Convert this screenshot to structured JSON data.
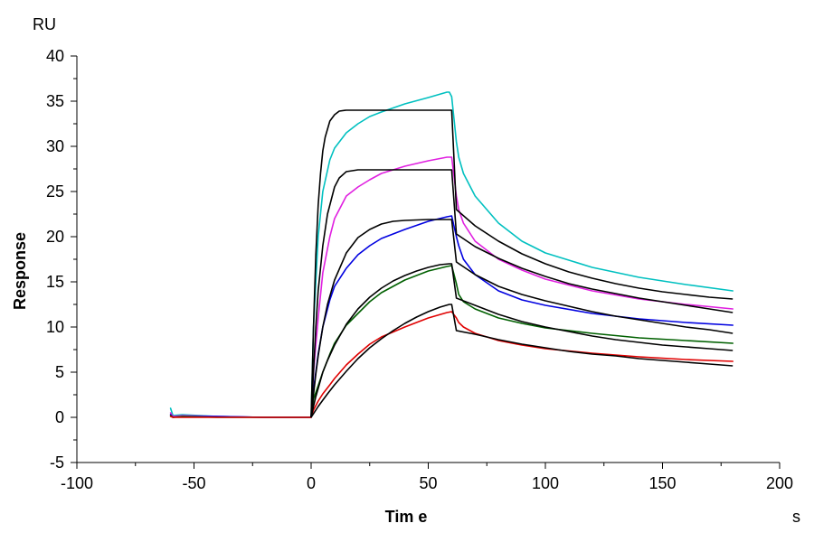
{
  "chart_data": {
    "type": "line",
    "xlabel": "Tim e",
    "ylabel": "Response",
    "x_unit": "s",
    "y_unit": "RU",
    "xlim": [
      -100,
      200
    ],
    "ylim": [
      -5,
      40
    ],
    "x_ticks": [
      -100,
      -50,
      0,
      50,
      100,
      150,
      200
    ],
    "y_ticks": [
      -5,
      0,
      5,
      10,
      15,
      20,
      25,
      30,
      35,
      40
    ],
    "grid": false,
    "legend": "none",
    "series": [
      {
        "color": "#00c0c0",
        "x": [
          -60,
          -59,
          -55,
          -40,
          -20,
          0,
          1,
          3,
          5,
          8,
          10,
          15,
          20,
          25,
          30,
          40,
          50,
          58,
          59,
          60,
          62,
          63,
          65,
          70,
          80,
          90,
          100,
          120,
          140,
          160,
          180
        ],
        "y": [
          1.0,
          0.2,
          0.3,
          0.1,
          0.0,
          0.0,
          10,
          20,
          25,
          28.5,
          29.8,
          31.5,
          32.5,
          33.3,
          33.8,
          34.7,
          35.4,
          36.0,
          36.0,
          35.5,
          30.5,
          28.8,
          27.0,
          24.5,
          21.5,
          19.5,
          18.2,
          16.6,
          15.5,
          14.7,
          14.0
        ]
      },
      {
        "color": "#e020e0",
        "x": [
          -60,
          -59,
          -55,
          -40,
          -20,
          0,
          1,
          3,
          5,
          8,
          10,
          15,
          20,
          25,
          30,
          40,
          50,
          58,
          60,
          62,
          63,
          65,
          70,
          80,
          90,
          100,
          120,
          140,
          160,
          180
        ],
        "y": [
          0.5,
          0.1,
          0.2,
          0.1,
          0.0,
          0.0,
          5,
          11,
          16,
          20,
          22,
          24.5,
          25.5,
          26.3,
          27.0,
          27.8,
          28.4,
          28.8,
          28.8,
          24.5,
          23.0,
          21.5,
          19.5,
          17.5,
          16.3,
          15.3,
          14.0,
          13.1,
          12.5,
          12.0
        ]
      },
      {
        "color": "#0000e0",
        "x": [
          -60,
          -59,
          -55,
          -40,
          -20,
          0,
          1,
          3,
          5,
          8,
          10,
          15,
          20,
          25,
          30,
          40,
          50,
          58,
          60,
          62,
          63,
          65,
          70,
          80,
          90,
          100,
          120,
          140,
          160,
          180
        ],
        "y": [
          0.3,
          0.0,
          0.1,
          0.1,
          0.0,
          0.0,
          3,
          7,
          10,
          13,
          14.5,
          16.5,
          18.0,
          19.0,
          19.8,
          20.8,
          21.7,
          22.2,
          22.3,
          20.0,
          19.0,
          17.5,
          15.8,
          14.0,
          13.0,
          12.4,
          11.5,
          10.9,
          10.5,
          10.2
        ]
      },
      {
        "color": "#006000",
        "x": [
          -60,
          -59,
          -55,
          -40,
          -20,
          0,
          1,
          3,
          5,
          8,
          10,
          15,
          20,
          25,
          30,
          40,
          50,
          58,
          60,
          62,
          63,
          65,
          70,
          80,
          90,
          100,
          120,
          140,
          160,
          180
        ],
        "y": [
          0.2,
          0.0,
          0.1,
          0.0,
          0.0,
          0.0,
          2,
          3.5,
          5,
          7,
          8.2,
          10.2,
          11.5,
          12.8,
          13.8,
          15.2,
          16.2,
          16.7,
          16.8,
          14.8,
          13.6,
          12.8,
          12.0,
          11.0,
          10.4,
          9.9,
          9.3,
          8.8,
          8.5,
          8.2
        ]
      },
      {
        "color": "#e00000",
        "x": [
          -60,
          -59,
          -55,
          -40,
          -20,
          0,
          1,
          3,
          5,
          8,
          10,
          15,
          20,
          25,
          30,
          40,
          50,
          58,
          60,
          62,
          63,
          65,
          70,
          80,
          90,
          100,
          120,
          140,
          160,
          180
        ],
        "y": [
          0.1,
          0.0,
          0.0,
          0.0,
          0.0,
          0.0,
          0.8,
          1.8,
          2.6,
          3.6,
          4.3,
          5.8,
          7.0,
          8.1,
          8.9,
          10.0,
          11.0,
          11.6,
          11.7,
          11.0,
          10.5,
          10.0,
          9.3,
          8.5,
          8.0,
          7.6,
          7.1,
          6.7,
          6.4,
          6.2
        ]
      }
    ],
    "fits": [
      {
        "color": "#000000",
        "x": [
          0,
          1,
          2,
          3,
          4,
          5,
          6,
          8,
          10,
          12,
          15,
          20,
          30,
          40,
          50,
          59,
          60,
          62,
          70,
          80,
          90,
          100,
          110,
          120,
          130,
          140,
          150,
          160,
          170,
          180
        ],
        "y": [
          0,
          10,
          18,
          23.5,
          27,
          29.5,
          31,
          32.8,
          33.5,
          33.9,
          34.0,
          34.0,
          34.0,
          34.0,
          34.0,
          34.0,
          34.0,
          23.0,
          21.2,
          19.5,
          18.1,
          17.0,
          16.1,
          15.4,
          14.8,
          14.3,
          13.9,
          13.6,
          13.3,
          13.1
        ]
      },
      {
        "color": "#000000",
        "x": [
          0,
          1,
          2,
          3,
          5,
          7,
          10,
          12,
          15,
          20,
          25,
          30,
          40,
          50,
          59,
          60,
          62,
          70,
          80,
          90,
          100,
          110,
          120,
          130,
          140,
          150,
          160,
          170,
          180
        ],
        "y": [
          0,
          5,
          10,
          14,
          19,
          22.5,
          25.5,
          26.5,
          27.2,
          27.4,
          27.4,
          27.4,
          27.4,
          27.4,
          27.4,
          27.4,
          20.3,
          18.9,
          17.6,
          16.5,
          15.6,
          14.8,
          14.2,
          13.7,
          13.2,
          12.8,
          12.4,
          12.0,
          11.6
        ]
      },
      {
        "color": "#000000",
        "x": [
          0,
          1,
          2,
          3,
          5,
          7,
          10,
          15,
          20,
          25,
          30,
          35,
          40,
          50,
          59,
          60,
          62,
          70,
          80,
          90,
          100,
          110,
          120,
          130,
          140,
          150,
          160,
          170,
          180
        ],
        "y": [
          0,
          2.5,
          4.8,
          6.8,
          10.0,
          12.5,
          15.2,
          18.2,
          19.9,
          20.8,
          21.4,
          21.7,
          21.8,
          21.9,
          21.9,
          21.9,
          17.2,
          15.8,
          14.5,
          13.6,
          12.9,
          12.3,
          11.7,
          11.2,
          10.8,
          10.4,
          10.0,
          9.7,
          9.3
        ]
      },
      {
        "color": "#000000",
        "x": [
          0,
          1,
          2,
          3,
          5,
          7,
          10,
          15,
          20,
          25,
          30,
          35,
          40,
          45,
          50,
          55,
          59,
          60,
          62,
          70,
          80,
          90,
          100,
          110,
          120,
          130,
          140,
          150,
          160,
          170,
          180
        ],
        "y": [
          0,
          1.2,
          2.3,
          3.2,
          5.0,
          6.3,
          8.0,
          10.3,
          12.0,
          13.3,
          14.3,
          15.1,
          15.7,
          16.2,
          16.6,
          16.9,
          17.0,
          17.0,
          13.2,
          12.4,
          11.4,
          10.6,
          10.0,
          9.5,
          9.0,
          8.6,
          8.3,
          8.0,
          7.8,
          7.6,
          7.4
        ]
      },
      {
        "color": "#000000",
        "x": [
          0,
          1,
          2,
          3,
          5,
          7,
          10,
          15,
          20,
          25,
          30,
          35,
          40,
          45,
          50,
          55,
          59,
          60,
          62,
          70,
          80,
          90,
          100,
          110,
          120,
          130,
          140,
          150,
          160,
          170,
          180
        ],
        "y": [
          0,
          0.4,
          0.8,
          1.2,
          1.9,
          2.6,
          3.6,
          5.1,
          6.5,
          7.7,
          8.7,
          9.6,
          10.4,
          11.1,
          11.7,
          12.2,
          12.5,
          12.5,
          9.6,
          9.2,
          8.6,
          8.1,
          7.7,
          7.3,
          7.0,
          6.8,
          6.5,
          6.3,
          6.1,
          5.9,
          5.7
        ]
      }
    ]
  }
}
